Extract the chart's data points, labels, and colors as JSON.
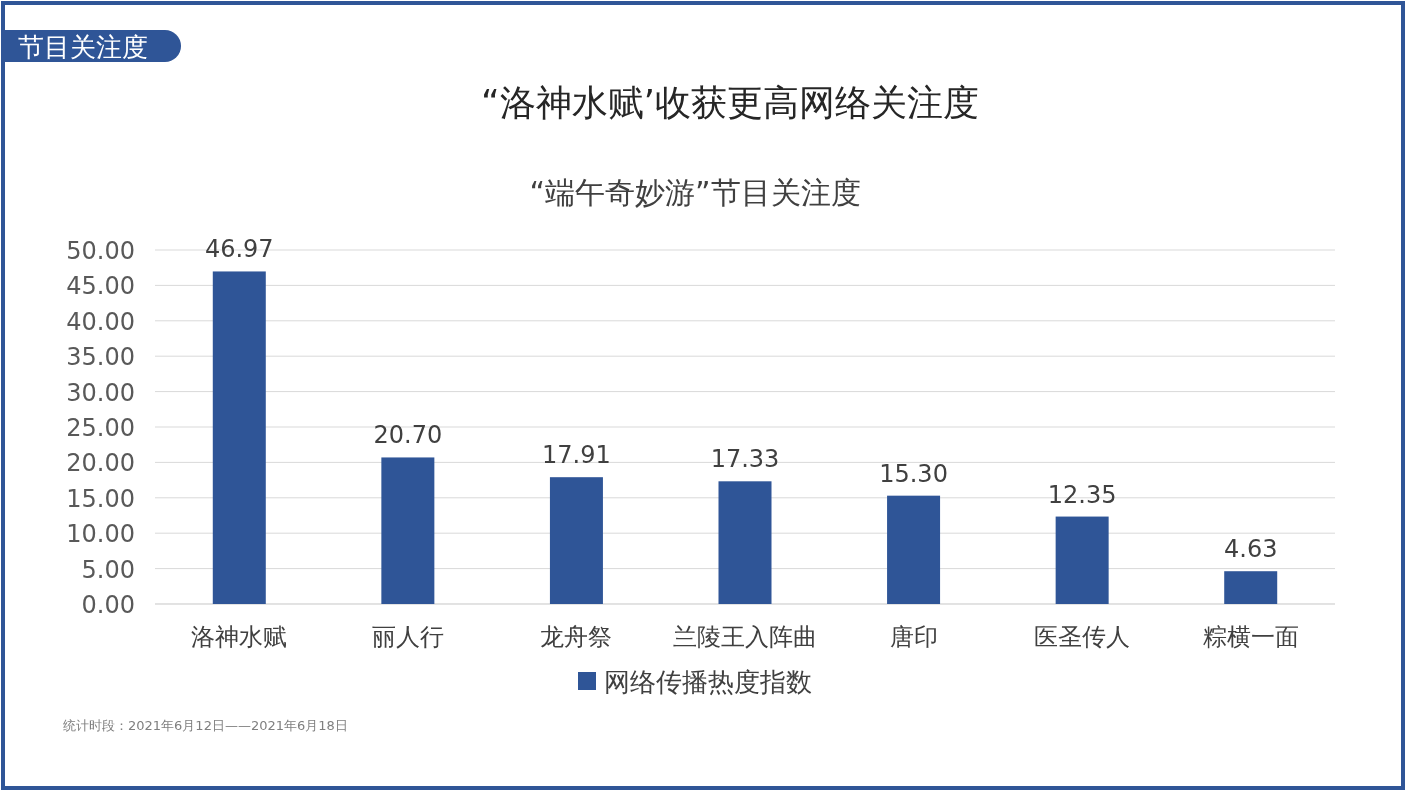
{
  "chart_data": {
    "type": "bar",
    "title": "“洛神水赋’收获更高网络关注度",
    "subtitle": "“端午奇妙游”节目关注度",
    "categories": [
      "洛神水赋",
      "丽人行",
      "龙舟祭",
      "兰陵王入阵曲",
      "唐印",
      "医圣传人",
      "粽横一面"
    ],
    "series": [
      {
        "name": "网络传播热度指数",
        "color": "#2f5597",
        "values": [
          46.97,
          20.7,
          17.91,
          17.33,
          15.3,
          12.35,
          4.63
        ]
      }
    ],
    "value_labels": [
      "46.97",
      "20.70",
      "17.91",
      "17.33",
      "15.30",
      "12.35",
      "4.63"
    ],
    "ylim": [
      0,
      50
    ],
    "yticks": [
      {
        "value": 0,
        "label": "0.00"
      },
      {
        "value": 5,
        "label": "5.00"
      },
      {
        "value": 10,
        "label": "10.00"
      },
      {
        "value": 15,
        "label": "15.00"
      },
      {
        "value": 20,
        "label": "20.00"
      },
      {
        "value": 25,
        "label": "25.00"
      },
      {
        "value": 30,
        "label": "30.00"
      },
      {
        "value": 35,
        "label": "35.00"
      },
      {
        "value": 40,
        "label": "40.00"
      },
      {
        "value": 45,
        "label": "45.00"
      },
      {
        "value": 50,
        "label": "50.00"
      }
    ],
    "grid": "y",
    "legend": "bottom",
    "annotations": [
      "节目关注度",
      "统计时段：2021年6月12日——2021年6月18日"
    ]
  }
}
